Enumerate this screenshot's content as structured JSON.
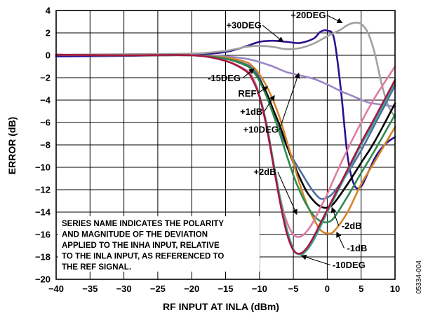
{
  "chart_data": {
    "type": "line",
    "xlabel": "RF INPUT AT INLA (dBm)",
    "ylabel": "ERROR (dB)",
    "xlim": [
      -40,
      10
    ],
    "ylim": [
      -20,
      4
    ],
    "xticks": [
      -40,
      -35,
      -30,
      -25,
      -20,
      -15,
      -10,
      -5,
      0,
      5,
      10
    ],
    "yticks": [
      4,
      2,
      0,
      -2,
      -4,
      -6,
      -8,
      -10,
      -12,
      -14,
      -16,
      -18,
      -20
    ],
    "grid": true,
    "figure_id": "05334-004",
    "annotation": "SERIES NAME INDICATES THE POLARITY AND MAGNITUDE OF THE DEVIATION APPLIED TO THE INHA INPUT, RELATIVE TO THE INLA INPUT, AS REFERENCED TO THE REF SIGNAL.",
    "series": [
      {
        "name": "+20DEG",
        "color": "#2d0f8f",
        "x": [
          -40,
          -30,
          -20,
          -15,
          -12,
          -10,
          -8,
          -6,
          -4,
          -2,
          -1,
          0,
          1,
          2,
          3,
          4,
          5,
          6,
          7,
          8,
          9,
          10
        ],
        "y": [
          -0.1,
          -0.05,
          0.05,
          0.3,
          0.8,
          1.2,
          1.3,
          1.2,
          1.1,
          1.5,
          2.1,
          2.2,
          1.5,
          -3,
          -9,
          -11.6,
          -11.7,
          -10.5,
          -9.2,
          -8.3,
          -7.7,
          -7.3
        ]
      },
      {
        "name": "+30DEG",
        "color": "#a0a0a0",
        "x": [
          -40,
          -30,
          -20,
          -15,
          -12,
          -10,
          -8,
          -6,
          -4,
          -2,
          0,
          1,
          2,
          3,
          4,
          5,
          6,
          7,
          8,
          9,
          10
        ],
        "y": [
          0.05,
          0.1,
          0.15,
          0.4,
          0.75,
          0.85,
          0.75,
          0.55,
          0.65,
          1.05,
          1.7,
          2.0,
          2.3,
          2.7,
          2.9,
          2.8,
          2.0,
          0.2,
          -2.5,
          -4.5,
          -5.5
        ]
      },
      {
        "name": "+10DEG",
        "color": "#9a88c4",
        "x": [
          -40,
          -30,
          -20,
          -15,
          -12,
          -10,
          -8,
          -6,
          -4,
          -2,
          0,
          2,
          4,
          6,
          8,
          10
        ],
        "y": [
          0.05,
          0.0,
          0.0,
          -0.1,
          -0.3,
          -0.6,
          -1.0,
          -1.5,
          -1.8,
          -2.1,
          -2.6,
          -3.2,
          -3.7,
          -4.2,
          -4.4,
          -4.6
        ]
      },
      {
        "name": "-15DEG",
        "color": "#4e6ea2",
        "x": [
          -40,
          -30,
          -20,
          -15,
          -12,
          -11,
          -10,
          -9,
          -8,
          -7,
          -6,
          -5,
          -4,
          -3,
          -2,
          -1,
          0,
          1,
          3,
          5,
          7,
          10
        ],
        "y": [
          0.05,
          0.0,
          0.0,
          -0.3,
          -0.8,
          -1.2,
          -2.0,
          -3.5,
          -5.2,
          -6.8,
          -8.1,
          -9.3,
          -10.3,
          -11.3,
          -12.2,
          -12.8,
          -12.7,
          -12.2,
          -10.5,
          -8.5,
          -6.2,
          -2.7
        ]
      },
      {
        "name": "REF",
        "color": "#000000",
        "x": [
          -40,
          -30,
          -20,
          -15,
          -12,
          -11,
          -10,
          -9,
          -8,
          -7,
          -6,
          -5,
          -4,
          -3,
          -2,
          -1,
          0,
          1,
          3,
          5,
          7,
          10
        ],
        "y": [
          0.05,
          0.0,
          0.0,
          -0.3,
          -0.9,
          -1.4,
          -2.2,
          -3.3,
          -4.8,
          -6.3,
          -8.0,
          -9.6,
          -11.0,
          -12.2,
          -13.0,
          -13.5,
          -13.6,
          -13.2,
          -11.5,
          -9.6,
          -7.7,
          -4.3
        ]
      },
      {
        "name": "+1dB",
        "color": "#d4842a",
        "x": [
          -40,
          -30,
          -20,
          -15,
          -12,
          -11,
          -10,
          -9,
          -8,
          -7,
          -6,
          -5,
          -4,
          -3,
          -2,
          -1,
          0,
          1,
          3,
          5,
          7,
          10
        ],
        "y": [
          0.05,
          0.0,
          0.0,
          -0.2,
          -0.6,
          -1.0,
          -1.7,
          -2.7,
          -4.0,
          -5.6,
          -7.6,
          -9.6,
          -11.6,
          -13.3,
          -14.6,
          -15.6,
          -15.9,
          -15.7,
          -14.0,
          -11.5,
          -9.5,
          -6.4
        ]
      },
      {
        "name": "-1dB",
        "color": "#2d8a4e",
        "x": [
          -40,
          -30,
          -20,
          -15,
          -12,
          -11,
          -10,
          -9,
          -8,
          -7,
          -6,
          -5,
          -4,
          -3,
          -2,
          -1,
          0,
          1,
          3,
          5,
          7,
          10
        ],
        "y": [
          0.05,
          0.0,
          0.0,
          -0.3,
          -0.9,
          -1.4,
          -2.3,
          -3.6,
          -5.2,
          -7.0,
          -8.9,
          -10.7,
          -12.2,
          -13.4,
          -14.3,
          -14.8,
          -14.9,
          -14.5,
          -12.6,
          -10.5,
          -8.5,
          -5.3
        ]
      },
      {
        "name": "+2dB",
        "color": "#e07ca0",
        "x": [
          -40,
          -30,
          -20,
          -15,
          -12,
          -11,
          -10,
          -9,
          -8,
          -7,
          -6,
          -5,
          -4,
          -3,
          -2,
          -1,
          0,
          1,
          3,
          5,
          7,
          10
        ],
        "y": [
          0.05,
          0.0,
          0.0,
          -0.5,
          -1.3,
          -2.0,
          -3.6,
          -6.3,
          -9.6,
          -12.6,
          -14.8,
          -16.0,
          -16.2,
          -15.7,
          -14.8,
          -13.6,
          -12.4,
          -11.0,
          -8.4,
          -6.0,
          -3.8,
          -1.0
        ]
      },
      {
        "name": "-10DEG",
        "color": "#3da89a",
        "x": [
          -40,
          -30,
          -20,
          -15,
          -12,
          -11,
          -10,
          -9,
          -8,
          -7,
          -6,
          -5,
          -4,
          -3,
          -2,
          -1,
          0,
          1,
          3,
          5,
          7,
          10
        ],
        "y": [
          0.05,
          0.0,
          0.0,
          -0.5,
          -1.4,
          -2.2,
          -3.6,
          -6.0,
          -9.3,
          -12.6,
          -15.4,
          -17.3,
          -17.8,
          -17.4,
          -16.5,
          -15.3,
          -14.0,
          -12.8,
          -10.4,
          -8.0,
          -5.9,
          -2.4
        ]
      },
      {
        "name": "-2dB",
        "color": "#a8163f",
        "x": [
          -40,
          -30,
          -20,
          -15,
          -12,
          -11,
          -10,
          -9,
          -8,
          -7,
          -6,
          -5,
          -4,
          -3,
          -2,
          -1,
          0,
          1,
          3,
          5,
          7,
          10
        ],
        "y": [
          0.05,
          0.0,
          0.0,
          -0.5,
          -1.4,
          -2.2,
          -3.7,
          -6.2,
          -9.6,
          -13.0,
          -15.8,
          -17.4,
          -17.7,
          -17.2,
          -16.2,
          -15.0,
          -13.8,
          -12.6,
          -10.2,
          -7.8,
          -5.6,
          -2.2
        ]
      }
    ],
    "callouts": [
      {
        "label": "+30DEG",
        "series": "+30DEG",
        "tx": -12.3,
        "ty": 2.4,
        "px": -6.5,
        "py": 1.2
      },
      {
        "label": "+20DEG",
        "series": "+20DEG",
        "tx": -2.8,
        "ty": 3.3,
        "px": 2.2,
        "py": 2.9
      },
      {
        "label": "-15DEG",
        "series": "-15DEG",
        "tx": -15.2,
        "ty": -2.3,
        "px": -10.8,
        "py": -1.2
      },
      {
        "label": "REF",
        "series": "REF",
        "tx": -11.8,
        "ty": -3.7,
        "px": -8.8,
        "py": -2.8
      },
      {
        "label": "+1dB",
        "series": "+1dB",
        "tx": -11.2,
        "ty": -5.3,
        "px": -7.8,
        "py": -3.6
      },
      {
        "label": "+10DEG",
        "series": "+10DEG",
        "tx": -9.8,
        "ty": -6.9,
        "px": -4.2,
        "py": -1.6
      },
      {
        "label": "+2dB",
        "series": "+2dB",
        "tx": -9.2,
        "ty": -10.7,
        "px": -4.5,
        "py": -14.2
      },
      {
        "label": "-2dB",
        "series": "-2dB",
        "tx": 3.6,
        "ty": -15.5,
        "px": 0.7,
        "py": -13.6
      },
      {
        "label": "-1dB",
        "series": "-1dB",
        "tx": 4.4,
        "ty": -17.5,
        "px": 1.4,
        "py": -15.8
      },
      {
        "label": "-10DEG",
        "series": "-10DEG",
        "tx": 3.2,
        "ty": -19.0,
        "px": -3.8,
        "py": -17.9
      }
    ]
  }
}
